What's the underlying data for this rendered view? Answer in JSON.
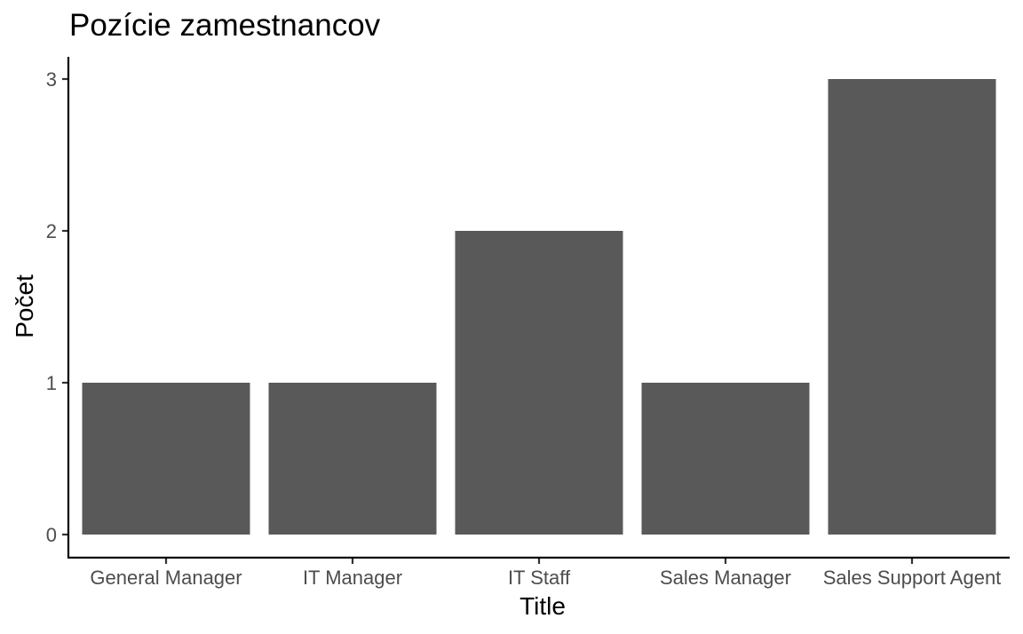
{
  "chart_data": {
    "type": "bar",
    "title": "Pozície zamestnancov",
    "xlabel": "Title",
    "ylabel": "Počet",
    "categories": [
      "General Manager",
      "IT Manager",
      "IT Staff",
      "Sales Manager",
      "Sales Support Agent"
    ],
    "values": [
      1,
      1,
      2,
      1,
      3
    ],
    "ylim": [
      0,
      3
    ],
    "yticks": [
      "0",
      "1",
      "2",
      "3"
    ],
    "bar_color": "#595959",
    "grid": false,
    "legend": "none"
  }
}
